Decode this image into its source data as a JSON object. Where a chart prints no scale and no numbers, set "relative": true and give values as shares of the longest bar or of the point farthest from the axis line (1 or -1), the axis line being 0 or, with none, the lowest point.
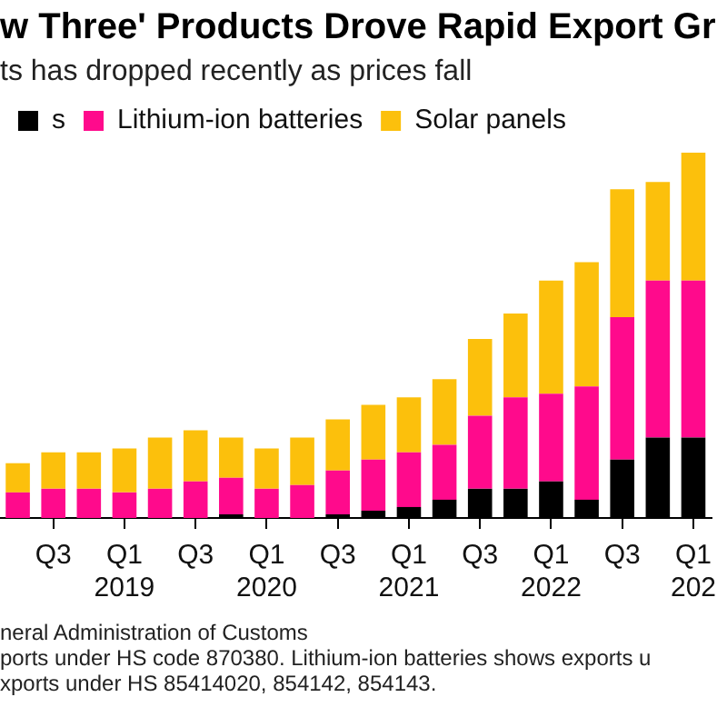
{
  "chart_data": {
    "type": "bar",
    "stacked": true,
    "relative": true,
    "title": "w Three' Products Drove Rapid Export Gr",
    "subtitle": "ts has dropped recently as prices fall",
    "legend": "top left",
    "grid": false,
    "categories": [
      null,
      "Q3",
      null,
      "Q1 2019",
      null,
      "Q3",
      null,
      "Q1 2020",
      null,
      "Q3",
      null,
      "Q1 2021",
      null,
      "Q3",
      null,
      "Q1 2022",
      null,
      "Q3",
      null,
      "Q1 202"
    ],
    "series": [
      {
        "name": "s",
        "color": "#000000",
        "values": [
          0,
          0,
          0,
          0,
          0,
          0,
          0.01,
          0,
          0,
          0.01,
          0.02,
          0.03,
          0.05,
          0.08,
          0.08,
          0.1,
          0.05,
          0.16,
          0.22,
          0.22
        ]
      },
      {
        "name": "Lithium-ion batteries",
        "color": "#ff0a8c",
        "values": [
          0.07,
          0.08,
          0.08,
          0.07,
          0.08,
          0.1,
          0.1,
          0.08,
          0.09,
          0.12,
          0.14,
          0.15,
          0.15,
          0.2,
          0.25,
          0.24,
          0.31,
          0.39,
          0.43,
          0.43
        ]
      },
      {
        "name": "Solar panels",
        "color": "#fcc00c",
        "values": [
          0.08,
          0.1,
          0.1,
          0.12,
          0.14,
          0.14,
          0.11,
          0.11,
          0.13,
          0.14,
          0.15,
          0.15,
          0.18,
          0.21,
          0.23,
          0.31,
          0.34,
          0.35,
          0.27,
          0.35
        ]
      }
    ],
    "annotations": [
      "neral Administration of Customs",
      "ports under HS code 870380. Lithium-ion batteries shows exports u",
      "xports under HS 85414020, 854142, 854143."
    ]
  }
}
